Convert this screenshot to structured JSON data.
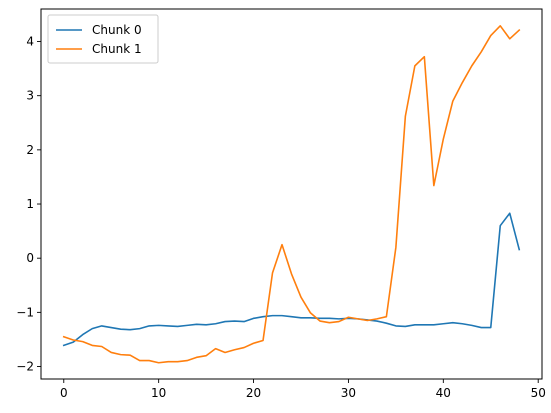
{
  "chart_data": {
    "type": "line",
    "title": "",
    "xlabel": "",
    "ylabel": "",
    "xlim": [
      -2.4,
      50.4
    ],
    "ylim": [
      -2.23,
      4.6
    ],
    "xticks": [
      0,
      10,
      20,
      30,
      40,
      50
    ],
    "yticks": [
      -2,
      -1,
      0,
      1,
      2,
      3,
      4
    ],
    "xtick_labels": [
      "0",
      "10",
      "20",
      "30",
      "40",
      "50"
    ],
    "ytick_labels": [
      "−2",
      "−1",
      "0",
      "1",
      "2",
      "3",
      "4"
    ],
    "grid": false,
    "legend_position": "top-left",
    "x": [
      0,
      1,
      2,
      3,
      4,
      5,
      6,
      7,
      8,
      9,
      10,
      11,
      12,
      13,
      14,
      15,
      16,
      17,
      18,
      19,
      20,
      21,
      22,
      23,
      24,
      25,
      26,
      27,
      28,
      29,
      30,
      31,
      32,
      33,
      34,
      35,
      36,
      37,
      38,
      39,
      40,
      41,
      42,
      43,
      44,
      45,
      46,
      47,
      48
    ],
    "series": [
      {
        "name": "Chunk 0",
        "color": "#1f77b4",
        "values": [
          -1.61,
          -1.55,
          -1.41,
          -1.3,
          -1.25,
          -1.28,
          -1.31,
          -1.32,
          -1.3,
          -1.25,
          -1.24,
          -1.25,
          -1.26,
          -1.24,
          -1.22,
          -1.23,
          -1.21,
          -1.17,
          -1.16,
          -1.17,
          -1.11,
          -1.08,
          -1.06,
          -1.06,
          -1.08,
          -1.1,
          -1.1,
          -1.11,
          -1.11,
          -1.12,
          -1.11,
          -1.12,
          -1.14,
          -1.16,
          -1.2,
          -1.25,
          -1.26,
          -1.23,
          -1.23,
          -1.23,
          -1.21,
          -1.19,
          -1.21,
          -1.24,
          -1.28,
          -1.28,
          0.6,
          0.83,
          0.16
        ]
      },
      {
        "name": "Chunk 1",
        "color": "#ff7f0e",
        "values": [
          -1.45,
          -1.51,
          -1.54,
          -1.61,
          -1.63,
          -1.74,
          -1.78,
          -1.79,
          -1.89,
          -1.89,
          -1.93,
          -1.91,
          -1.91,
          -1.89,
          -1.83,
          -1.8,
          -1.67,
          -1.74,
          -1.69,
          -1.65,
          -1.57,
          -1.52,
          -0.27,
          0.25,
          -0.29,
          -0.72,
          -1.01,
          -1.16,
          -1.19,
          -1.17,
          -1.09,
          -1.12,
          -1.15,
          -1.12,
          -1.08,
          0.2,
          2.62,
          3.55,
          3.72,
          1.34,
          2.2,
          2.9,
          3.24,
          3.55,
          3.81,
          4.11,
          4.29,
          4.05,
          4.21
        ]
      }
    ]
  }
}
